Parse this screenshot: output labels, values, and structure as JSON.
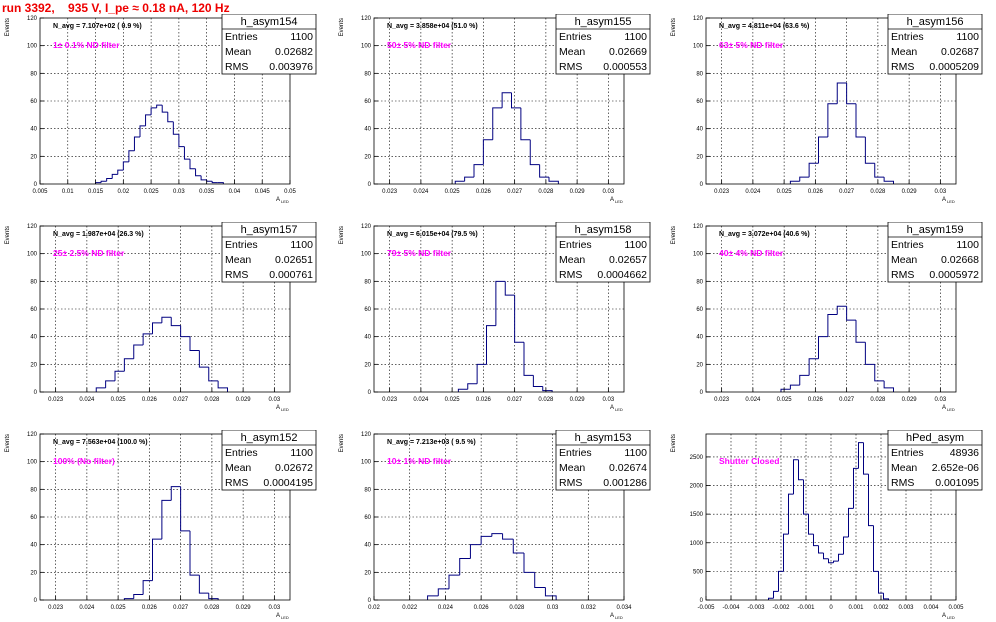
{
  "canvas_title": "run 3392,    935 V, I_pe ≈ 0.18 nA, 120 Hz",
  "stats_labels": {
    "entries": "Entries",
    "mean": "Mean",
    "rms": "RMS"
  },
  "chart_data": [
    {
      "type": "histogram",
      "title": "h_asym154",
      "ylabel": "Events",
      "xlabel": "A",
      "xlabel_sub": "LED",
      "annotation": "N_avg = 7.107e+02 ( 0.9 %)",
      "filter_label": "1± 0.1% ND filter",
      "stats": {
        "entries": "1100",
        "mean": "0.02682",
        "rms": "0.003976"
      },
      "xlim": [
        0.005,
        0.05
      ],
      "ylim": [
        0,
        120
      ],
      "xticks": [
        0.005,
        0.01,
        0.015,
        0.02,
        0.025,
        0.03,
        0.035,
        0.04,
        0.045,
        0.05
      ],
      "xtick_labels": [
        "0.005",
        "0.01",
        "0.015",
        "0.02",
        "0.025",
        "0.03",
        "0.035",
        "0.04",
        "0.045",
        "0.05"
      ],
      "yticks": [
        0,
        20,
        40,
        60,
        80,
        100,
        120
      ],
      "ytick_labels": [
        "0",
        "20",
        "40",
        "60",
        "80",
        "100",
        "120"
      ],
      "x": [
        0.0155,
        0.0165,
        0.0175,
        0.0185,
        0.0195,
        0.0205,
        0.0215,
        0.0225,
        0.0235,
        0.0245,
        0.0255,
        0.0265,
        0.0275,
        0.0285,
        0.0295,
        0.0305,
        0.0315,
        0.0325,
        0.0335,
        0.0345,
        0.0355,
        0.0365,
        0.0375
      ],
      "values": [
        1,
        2,
        4,
        7,
        10,
        16,
        24,
        34,
        42,
        50,
        55,
        57,
        52,
        45,
        36,
        27,
        18,
        11,
        6,
        3,
        2,
        1,
        1
      ],
      "color": "#000080"
    },
    {
      "type": "histogram",
      "title": "h_asym155",
      "ylabel": "Events",
      "xlabel": "A",
      "xlabel_sub": "LED",
      "annotation": "N_avg = 3.858e+04 (51.0 %)",
      "filter_label": "50± 5% ND filter",
      "stats": {
        "entries": "1100",
        "mean": "0.02669",
        "rms": "0.000553"
      },
      "xlim": [
        0.0225,
        0.0305
      ],
      "ylim": [
        0,
        120
      ],
      "xticks": [
        0.023,
        0.024,
        0.025,
        0.026,
        0.027,
        0.028,
        0.029,
        0.03
      ],
      "xtick_labels": [
        "0.023",
        "0.024",
        "0.025",
        "0.026",
        "0.027",
        "0.028",
        "0.029",
        "0.03"
      ],
      "yticks": [
        0,
        20,
        40,
        60,
        80,
        100,
        120
      ],
      "ytick_labels": [
        "0",
        "20",
        "40",
        "60",
        "80",
        "100",
        "120"
      ],
      "x": [
        0.02525,
        0.02555,
        0.02585,
        0.02615,
        0.02645,
        0.02675,
        0.02705,
        0.02735,
        0.02765,
        0.02795,
        0.02825
      ],
      "values": [
        2,
        5,
        14,
        32,
        55,
        66,
        55,
        32,
        14,
        5,
        2
      ],
      "color": "#000080"
    },
    {
      "type": "histogram",
      "title": "h_asym156",
      "ylabel": "Events",
      "xlabel": "A",
      "xlabel_sub": "LED",
      "annotation": "N_avg = 4.811e+04 (63.6 %)",
      "filter_label": "63± 5% ND filter",
      "stats": {
        "entries": "1100",
        "mean": "0.02687",
        "rms": "0.0005209"
      },
      "xlim": [
        0.0225,
        0.0305
      ],
      "ylim": [
        0,
        120
      ],
      "xticks": [
        0.023,
        0.024,
        0.025,
        0.026,
        0.027,
        0.028,
        0.029,
        0.03
      ],
      "xtick_labels": [
        "0.023",
        "0.024",
        "0.025",
        "0.026",
        "0.027",
        "0.028",
        "0.029",
        "0.03"
      ],
      "yticks": [
        0,
        20,
        40,
        60,
        80,
        100,
        120
      ],
      "ytick_labels": [
        "0",
        "20",
        "40",
        "60",
        "80",
        "100",
        "120"
      ],
      "x": [
        0.02535,
        0.02565,
        0.02595,
        0.02625,
        0.02655,
        0.02685,
        0.02715,
        0.02745,
        0.02775,
        0.02805,
        0.02835
      ],
      "values": [
        2,
        5,
        15,
        34,
        58,
        73,
        58,
        34,
        15,
        5,
        2
      ],
      "color": "#000080"
    },
    {
      "type": "histogram",
      "title": "h_asym157",
      "ylabel": "Events",
      "xlabel": "A",
      "xlabel_sub": "LED",
      "annotation": "N_avg = 1.987e+04 (26.3 %)",
      "filter_label": "25± 2.5% ND filter",
      "stats": {
        "entries": "1100",
        "mean": "0.02651",
        "rms": "0.000761"
      },
      "xlim": [
        0.0225,
        0.0305
      ],
      "ylim": [
        0,
        120
      ],
      "xticks": [
        0.023,
        0.024,
        0.025,
        0.026,
        0.027,
        0.028,
        0.029,
        0.03
      ],
      "xtick_labels": [
        "0.023",
        "0.024",
        "0.025",
        "0.026",
        "0.027",
        "0.028",
        "0.029",
        "0.03"
      ],
      "yticks": [
        0,
        20,
        40,
        60,
        80,
        100,
        120
      ],
      "ytick_labels": [
        "0",
        "20",
        "40",
        "60",
        "80",
        "100",
        "120"
      ],
      "x": [
        0.02445,
        0.02475,
        0.02505,
        0.02535,
        0.02565,
        0.02595,
        0.02625,
        0.02655,
        0.02685,
        0.02715,
        0.02745,
        0.02775,
        0.02805,
        0.02835
      ],
      "values": [
        3,
        8,
        15,
        24,
        34,
        42,
        50,
        54,
        48,
        40,
        30,
        18,
        8,
        3
      ],
      "color": "#000080"
    },
    {
      "type": "histogram",
      "title": "h_asym158",
      "ylabel": "Events",
      "xlabel": "A",
      "xlabel_sub": "LED",
      "annotation": "N_avg = 6.015e+04 (79.5 %)",
      "filter_label": "79± 5% ND filter",
      "stats": {
        "entries": "1100",
        "mean": "0.02657",
        "rms": "0.0004662"
      },
      "xlim": [
        0.0225,
        0.0305
      ],
      "ylim": [
        0,
        120
      ],
      "xticks": [
        0.023,
        0.024,
        0.025,
        0.026,
        0.027,
        0.028,
        0.029,
        0.03
      ],
      "xtick_labels": [
        "0.023",
        "0.024",
        "0.025",
        "0.026",
        "0.027",
        "0.028",
        "0.029",
        "0.03"
      ],
      "yticks": [
        0,
        20,
        40,
        60,
        80,
        100,
        120
      ],
      "ytick_labels": [
        "0",
        "20",
        "40",
        "60",
        "80",
        "100",
        "120"
      ],
      "x": [
        0.02535,
        0.02565,
        0.02595,
        0.02625,
        0.02655,
        0.02685,
        0.02715,
        0.02745,
        0.02775,
        0.02805
      ],
      "values": [
        2,
        6,
        20,
        48,
        80,
        70,
        36,
        12,
        4,
        1
      ],
      "color": "#000080"
    },
    {
      "type": "histogram",
      "title": "h_asym159",
      "ylabel": "Events",
      "xlabel": "A",
      "xlabel_sub": "LED",
      "annotation": "N_avg = 3.072e+04 (40.6 %)",
      "filter_label": "40± 4% ND filter",
      "stats": {
        "entries": "1100",
        "mean": "0.02668",
        "rms": "0.0005972"
      },
      "xlim": [
        0.0225,
        0.0305
      ],
      "ylim": [
        0,
        120
      ],
      "xticks": [
        0.023,
        0.024,
        0.025,
        0.026,
        0.027,
        0.028,
        0.029,
        0.03
      ],
      "xtick_labels": [
        "0.023",
        "0.024",
        "0.025",
        "0.026",
        "0.027",
        "0.028",
        "0.029",
        "0.03"
      ],
      "yticks": [
        0,
        20,
        40,
        60,
        80,
        100,
        120
      ],
      "ytick_labels": [
        "0",
        "20",
        "40",
        "60",
        "80",
        "100",
        "120"
      ],
      "x": [
        0.02505,
        0.02535,
        0.02565,
        0.02595,
        0.02625,
        0.02655,
        0.02685,
        0.02715,
        0.02745,
        0.02775,
        0.02805,
        0.02835
      ],
      "values": [
        2,
        5,
        12,
        24,
        40,
        56,
        62,
        52,
        36,
        20,
        8,
        3
      ],
      "color": "#000080"
    },
    {
      "type": "histogram",
      "title": "h_asym152",
      "ylabel": "Events",
      "xlabel": "A",
      "xlabel_sub": "LED",
      "annotation": "N_avg = 7.563e+04 (100.0 %)",
      "filter_label": "100% (No filter)",
      "stats": {
        "entries": "1100",
        "mean": "0.02672",
        "rms": "0.0004195"
      },
      "xlim": [
        0.0225,
        0.0305
      ],
      "ylim": [
        0,
        120
      ],
      "xticks": [
        0.023,
        0.024,
        0.025,
        0.026,
        0.027,
        0.028,
        0.029,
        0.03
      ],
      "xtick_labels": [
        "0.023",
        "0.024",
        "0.025",
        "0.026",
        "0.027",
        "0.028",
        "0.029",
        "0.03"
      ],
      "yticks": [
        0,
        20,
        40,
        60,
        80,
        100,
        120
      ],
      "ytick_labels": [
        "0",
        "20",
        "40",
        "60",
        "80",
        "100",
        "120"
      ],
      "x": [
        0.02535,
        0.02565,
        0.02595,
        0.02625,
        0.02655,
        0.02685,
        0.02715,
        0.02745,
        0.02775,
        0.02805
      ],
      "values": [
        1,
        4,
        14,
        44,
        72,
        82,
        50,
        18,
        5,
        1
      ],
      "color": "#000080"
    },
    {
      "type": "histogram",
      "title": "h_asym153",
      "ylabel": "Events",
      "xlabel": "A",
      "xlabel_sub": "LED",
      "annotation": "N_avg = 7.213e+03 ( 9.5 %)",
      "filter_label": "10± 1% ND filter",
      "stats": {
        "entries": "1100",
        "mean": "0.02674",
        "rms": "0.001286"
      },
      "xlim": [
        0.02,
        0.034
      ],
      "ylim": [
        0,
        120
      ],
      "xticks": [
        0.02,
        0.022,
        0.024,
        0.026,
        0.028,
        0.03,
        0.032,
        0.034
      ],
      "xtick_labels": [
        "0.02",
        "0.022",
        "0.024",
        "0.026",
        "0.028",
        "0.03",
        "0.032",
        "0.034"
      ],
      "yticks": [
        0,
        20,
        40,
        60,
        80,
        100,
        120
      ],
      "ytick_labels": [
        "0",
        "20",
        "40",
        "60",
        "80",
        "100",
        "120"
      ],
      "x": [
        0.0233,
        0.0239,
        0.0245,
        0.0251,
        0.0257,
        0.0263,
        0.0269,
        0.0275,
        0.0281,
        0.0287,
        0.0293,
        0.0299
      ],
      "values": [
        3,
        8,
        18,
        30,
        40,
        46,
        48,
        44,
        34,
        20,
        9,
        3
      ],
      "color": "#000080"
    },
    {
      "type": "histogram",
      "title": "hPed_asym",
      "ylabel": "Events",
      "xlabel": "A",
      "xlabel_sub": "LED",
      "annotation": "",
      "filter_label": "Shutter Closed",
      "stats": {
        "entries": "48936",
        "mean": "2.652e-06",
        "rms": "0.001095"
      },
      "xlim": [
        -0.005,
        0.005
      ],
      "ylim": [
        0,
        2900
      ],
      "xticks": [
        -0.005,
        -0.004,
        -0.003,
        -0.002,
        -0.001,
        0,
        0.001,
        0.002,
        0.003,
        0.004,
        0.005
      ],
      "xtick_labels": [
        "-0.005",
        "-0.004",
        "-0.003",
        "-0.002",
        "-0.001",
        "0",
        "0.001",
        "0.002",
        "0.003",
        "0.004",
        "0.005"
      ],
      "yticks": [
        0,
        500,
        1000,
        1500,
        2000,
        2500
      ],
      "ytick_labels": [
        "0",
        "500",
        "1000",
        "1500",
        "2000",
        "2500"
      ],
      "x": [
        -0.0024,
        -0.0022,
        -0.002,
        -0.0018,
        -0.0016,
        -0.0014,
        -0.0012,
        -0.001,
        -0.0008,
        -0.0006,
        -0.0004,
        -0.0002,
        0,
        0.0002,
        0.0004,
        0.0006,
        0.0008,
        0.001,
        0.0012,
        0.0014,
        0.0016,
        0.0018,
        0.002,
        0.0022
      ],
      "values": [
        30,
        150,
        500,
        1150,
        1850,
        2450,
        2100,
        1500,
        1150,
        950,
        820,
        720,
        650,
        680,
        800,
        1100,
        1600,
        2300,
        2750,
        2200,
        1300,
        500,
        120,
        20
      ],
      "color": "#000080"
    }
  ]
}
